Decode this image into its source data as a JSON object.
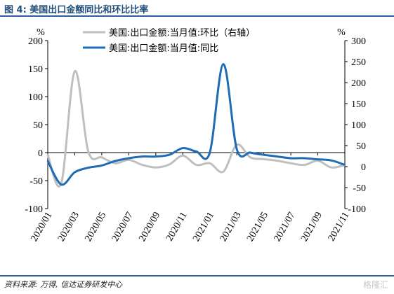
{
  "figure": {
    "title": "图 4: 美国出口金额同比和环比比率",
    "source": "资料来源: 万得, 信达证券研发中心",
    "watermark": "格隆汇"
  },
  "chart_data": {
    "type": "line",
    "left_unit": "%",
    "right_unit": "%",
    "ylim_left": [
      -100,
      200
    ],
    "ylim_right": [
      -100,
      300
    ],
    "yticks_left": [
      -100,
      -50,
      0,
      50,
      100,
      150,
      200
    ],
    "yticks_right": [
      -100,
      -50,
      0,
      50,
      100,
      150,
      200,
      250,
      300
    ],
    "x_tick_labels": [
      "2020/01",
      "2020/03",
      "2020/05",
      "2020/07",
      "2020/09",
      "2020/11",
      "2021/01",
      "2021/03",
      "2021/05",
      "2021/07",
      "2021/09",
      "2021/11"
    ],
    "x": [
      "2020/01",
      "2020/02",
      "2020/03",
      "2020/04",
      "2020/05",
      "2020/06",
      "2020/07",
      "2020/08",
      "2020/09",
      "2020/10",
      "2020/11",
      "2020/12",
      "2021/01",
      "2021/02",
      "2021/03",
      "2021/04",
      "2021/05",
      "2021/06",
      "2021/07",
      "2021/08",
      "2021/09",
      "2021/10",
      "2021/11"
    ],
    "series": [
      {
        "name": "美国:出口金额:当月值:环比（右轴）",
        "axis": "right",
        "color": "#bfbfbf",
        "values": [
          28,
          -40,
          227,
          36,
          22,
          8,
          16,
          4,
          -2,
          5,
          26,
          4,
          8,
          -12,
          52,
          22,
          18,
          14,
          8,
          4,
          14,
          -2,
          4
        ]
      },
      {
        "name": "美国:出口金额:当月值:同比",
        "axis": "left",
        "color": "#1f6bb5",
        "values": [
          -15,
          -57,
          -35,
          -27,
          -23,
          -15,
          -10,
          -7,
          -7,
          -4,
          8,
          2,
          0,
          158,
          6,
          0,
          -4,
          -7,
          -10,
          -10,
          -12,
          -14,
          -22
        ]
      }
    ]
  }
}
